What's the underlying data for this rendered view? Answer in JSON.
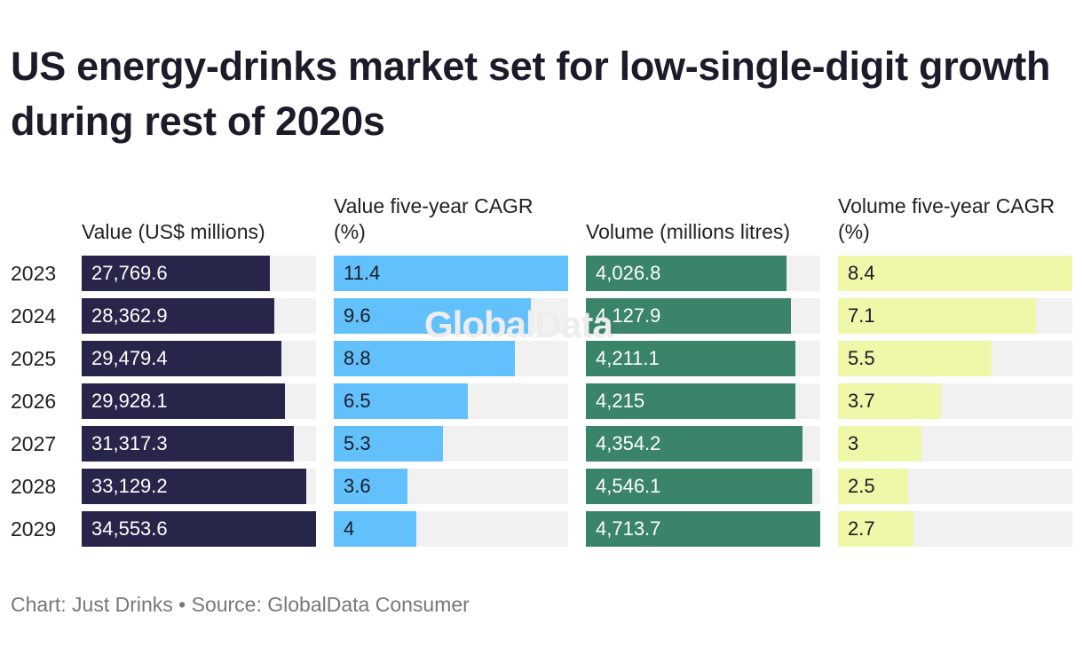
{
  "chart_data": {
    "type": "table",
    "title": "US energy-drinks market set for low-single-digit growth during rest of 2020s",
    "rows": [
      "2023",
      "2024",
      "2025",
      "2026",
      "2027",
      "2028",
      "2029"
    ],
    "columns": [
      {
        "header": "Value (US$ millions)",
        "values": [
          "27,769.6",
          "28,362.9",
          "29,479.4",
          "29,928.1",
          "31,317.3",
          "33,129.2",
          "34,553.6"
        ],
        "bar_color": "#27264a",
        "text_color": "#ffffff"
      },
      {
        "header": "Value five-year CAGR (%)",
        "values": [
          "11.4",
          "9.6",
          "8.8",
          "6.5",
          "5.3",
          "3.6",
          "4"
        ],
        "bar_color": "#62c1fa",
        "text_color": "#1b1b2a"
      },
      {
        "header": "Volume (millions litres)",
        "values": [
          "4,026.8",
          "4,127.9",
          "4,211.1",
          "4,215",
          "4,354.2",
          "4,546.1",
          "4,713.7"
        ],
        "bar_color": "#3a8469",
        "text_color": "#ffffff"
      },
      {
        "header": "Volume five-year CAGR (%)",
        "values": [
          "8.4",
          "7.1",
          "5.5",
          "3.7",
          "3",
          "2.5",
          "2.7"
        ],
        "bar_color": "#eff7a9",
        "text_color": "#1b1b2a"
      }
    ],
    "track_color": "#f1f1f2"
  },
  "watermark": "GlobalData",
  "footer": "Chart: Just Drinks • Source: GlobalData Consumer"
}
